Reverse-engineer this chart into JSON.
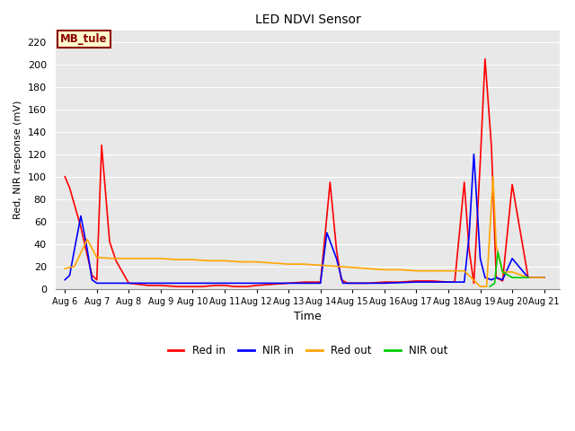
{
  "title": "LED NDVI Sensor",
  "xlabel": "Time",
  "ylabel": "Red, NIR response (mV)",
  "ylim": [
    0,
    230
  ],
  "yticks": [
    0,
    20,
    40,
    60,
    80,
    100,
    120,
    140,
    160,
    180,
    200,
    220
  ],
  "bg_color": "#e8e8e8",
  "annotation_text": "MB_tule",
  "annotation_bg": "#ffffcc",
  "annotation_border": "#8b0000",
  "annotation_text_color": "#8b0000",
  "x_labels": [
    "Aug 6",
    "Aug 7",
    "Aug 8",
    "Aug 9",
    "Aug 10",
    "Aug 11",
    "Aug 12",
    "Aug 13",
    "Aug 14",
    "Aug 15",
    "Aug 16",
    "Aug 17",
    "Aug 18",
    "Aug 19",
    "Aug 20",
    "Aug 21"
  ],
  "series": {
    "red_in": {
      "color": "#ff0000",
      "label": "Red in",
      "x": [
        0,
        0.15,
        0.3,
        0.5,
        0.7,
        0.85,
        1.0,
        1.15,
        1.4,
        1.6,
        2.0,
        2.3,
        2.6,
        3.0,
        3.5,
        4.0,
        4.3,
        4.7,
        5.0,
        5.3,
        5.7,
        6.0,
        6.5,
        7.0,
        7.5,
        8.0,
        8.15,
        8.3,
        8.5,
        8.65,
        8.85,
        9.0,
        9.5,
        10.0,
        10.5,
        11.0,
        11.5,
        12.0,
        12.2,
        12.35,
        12.5,
        12.65,
        12.8,
        13.0,
        13.15,
        13.35,
        13.5,
        13.7,
        14.0,
        14.5,
        15.0
      ],
      "y": [
        100,
        90,
        75,
        55,
        30,
        12,
        8,
        128,
        42,
        25,
        5,
        4,
        3,
        3,
        2,
        2,
        2,
        3,
        3,
        2,
        2,
        3,
        4,
        5,
        6,
        6,
        50,
        95,
        35,
        8,
        5,
        5,
        5,
        6,
        6,
        7,
        7,
        6,
        6,
        50,
        95,
        35,
        5,
        113,
        205,
        127,
        10,
        7,
        93,
        10,
        10
      ]
    },
    "nir_in": {
      "color": "#0000ff",
      "label": "NIR in",
      "x": [
        0,
        0.15,
        0.3,
        0.5,
        0.7,
        0.85,
        1.0,
        1.4,
        1.6,
        2.0,
        2.5,
        3.0,
        4.0,
        5.0,
        6.0,
        7.0,
        7.5,
        8.0,
        8.2,
        8.5,
        8.7,
        9.0,
        9.5,
        10.0,
        11.0,
        12.0,
        12.5,
        12.65,
        12.8,
        13.0,
        13.15,
        13.35,
        13.5,
        13.7,
        14.0,
        14.5,
        15.0
      ],
      "y": [
        8,
        12,
        35,
        65,
        35,
        8,
        5,
        5,
        5,
        5,
        5,
        5,
        5,
        5,
        5,
        5,
        5,
        5,
        50,
        27,
        5,
        5,
        5,
        5,
        6,
        6,
        6,
        47,
        120,
        27,
        10,
        8,
        10,
        8,
        27,
        10,
        10
      ]
    },
    "red_out": {
      "color": "#ffa500",
      "label": "Red out",
      "x": [
        0,
        0.3,
        0.7,
        1.0,
        1.5,
        2.0,
        2.5,
        3.0,
        3.5,
        4.0,
        4.5,
        5.0,
        5.5,
        6.0,
        6.5,
        7.0,
        7.5,
        8.0,
        8.5,
        9.0,
        9.5,
        10.0,
        10.5,
        11.0,
        11.5,
        12.0,
        12.5,
        13.0,
        13.2,
        13.4,
        13.5,
        13.7,
        14.0,
        14.5,
        15.0
      ],
      "y": [
        18,
        20,
        44,
        28,
        27,
        27,
        27,
        27,
        26,
        26,
        25,
        25,
        24,
        24,
        23,
        22,
        22,
        21,
        20,
        19,
        18,
        17,
        17,
        16,
        16,
        16,
        16,
        2,
        2,
        100,
        38,
        15,
        15,
        10,
        10
      ]
    },
    "nir_out": {
      "color": "#00cc00",
      "label": "NIR out",
      "x": [
        13.3,
        13.45,
        13.55,
        13.7,
        14.0,
        14.5
      ],
      "y": [
        2,
        5,
        33,
        15,
        10,
        10
      ]
    }
  }
}
